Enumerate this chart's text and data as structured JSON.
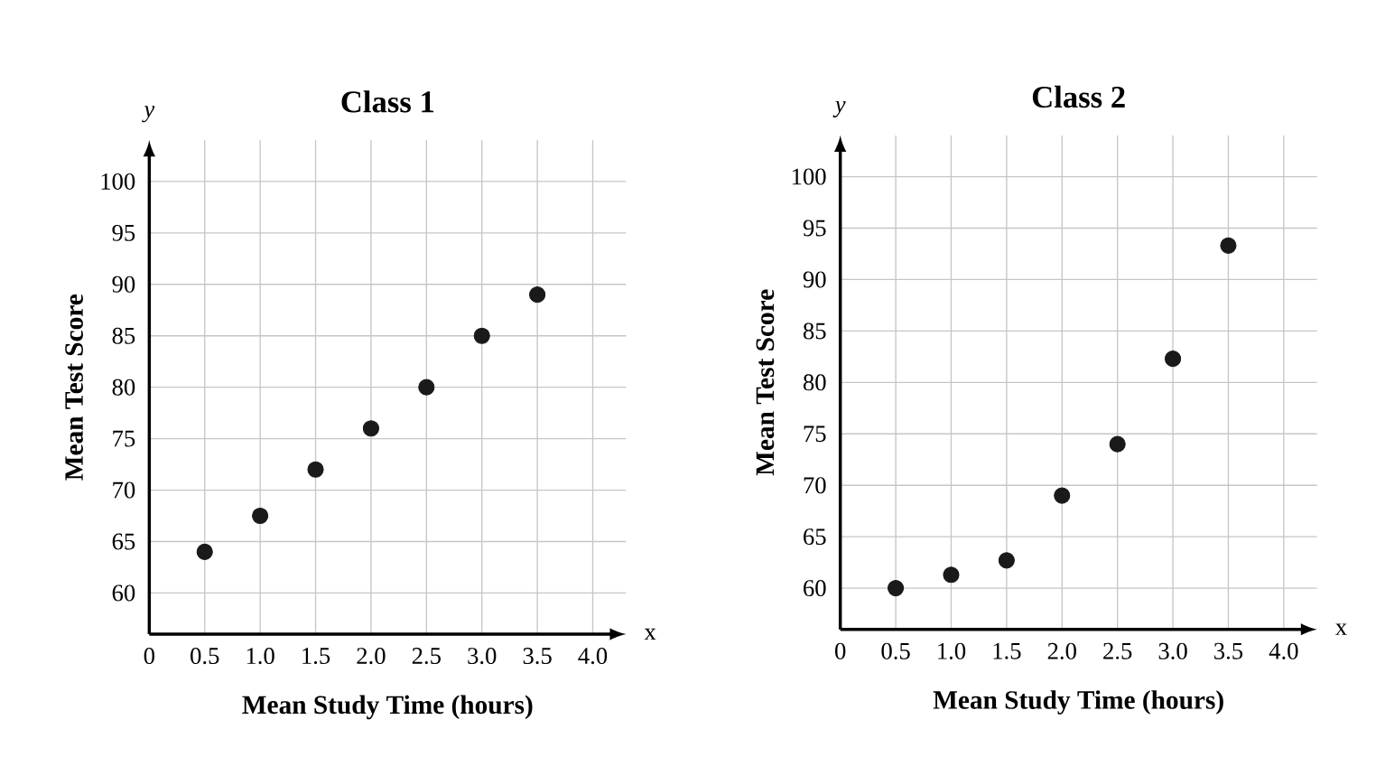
{
  "chart_data": [
    {
      "type": "scatter",
      "title": "Class 1",
      "xlabel": "Mean Study Time (hours)",
      "ylabel": "Mean Test Score",
      "annotations": [
        "x",
        "y"
      ],
      "x": [
        0.5,
        1.0,
        1.5,
        2.0,
        2.5,
        3.0,
        3.5
      ],
      "values": [
        64,
        67.5,
        72,
        76,
        80,
        85,
        89
      ],
      "color": "#1a1a1a",
      "xlim": [
        0,
        4.3
      ],
      "ylim": [
        56,
        104
      ],
      "xticks": [
        0,
        0.5,
        {
          "value": 1,
          "label": "1.0"
        },
        1.5,
        {
          "value": 2,
          "label": "2.0"
        },
        2.5,
        {
          "value": 3,
          "label": "3.0"
        },
        3.5,
        {
          "value": 4,
          "label": "4.0"
        }
      ],
      "yticks": [
        60,
        65,
        70,
        75,
        80,
        85,
        90,
        95,
        100
      ],
      "grid": true
    },
    {
      "type": "scatter",
      "title": "Class 2",
      "xlabel": "Mean Study Time (hours)",
      "ylabel": "Mean Test Score",
      "annotations": [
        "x",
        "y"
      ],
      "x": [
        0.5,
        1.0,
        1.5,
        2.0,
        2.5,
        3.0,
        3.5
      ],
      "values": [
        60,
        61.3,
        62.7,
        69,
        74,
        82.3,
        93.3
      ],
      "color": "#1a1a1a",
      "xlim": [
        0,
        4.3
      ],
      "ylim": [
        56,
        104
      ],
      "xticks": [
        0,
        0.5,
        {
          "value": 1,
          "label": "1.0"
        },
        1.5,
        {
          "value": 2,
          "label": "2.0"
        },
        2.5,
        {
          "value": 3,
          "label": "3.0"
        },
        3.5,
        {
          "value": 4,
          "label": "4.0"
        }
      ],
      "yticks": [
        60,
        65,
        70,
        75,
        80,
        85,
        90,
        95,
        100
      ],
      "grid": true
    }
  ]
}
